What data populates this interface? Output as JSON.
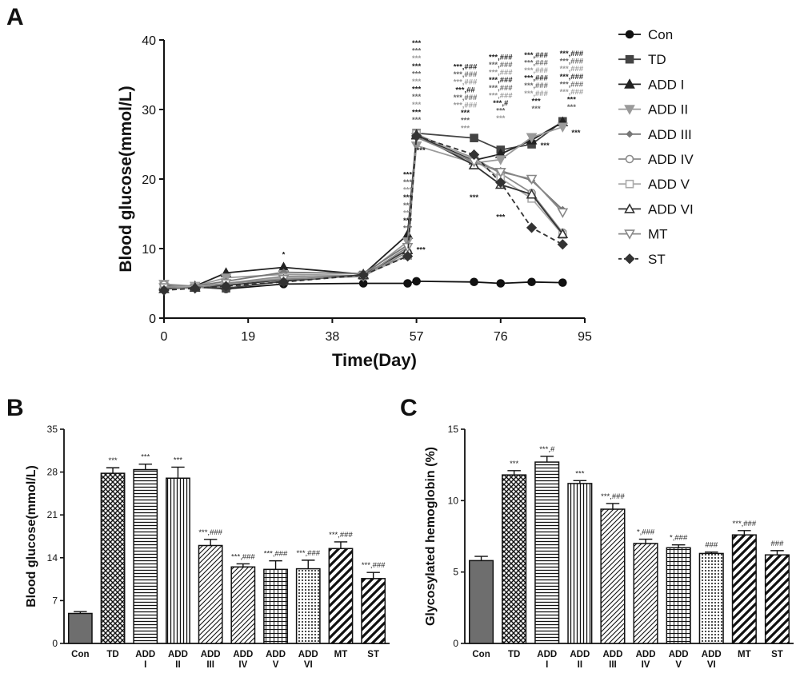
{
  "panels": {
    "a": {
      "letter": "A"
    },
    "b": {
      "letter": "B"
    },
    "c": {
      "letter": "C"
    }
  },
  "chart_data": [
    {
      "id": "A",
      "type": "line",
      "xlabel": "Time(Day)",
      "ylabel": "Blood glucose(mmol/L)",
      "xlim": [
        0,
        95
      ],
      "ylim": [
        0,
        40
      ],
      "xticks": [
        0,
        19,
        38,
        57,
        76,
        95
      ],
      "yticks": [
        0,
        10,
        20,
        30,
        40
      ],
      "grid": false,
      "legend_position": "right",
      "x": [
        0,
        7,
        14,
        27,
        45,
        55,
        57,
        70,
        76,
        83,
        90
      ],
      "series": [
        {
          "name": "Con",
          "color": "#111111",
          "marker": "circle",
          "dash": "",
          "values": [
            4.3,
            4.5,
            4.2,
            4.9,
            5.0,
            5.0,
            5.3,
            5.2,
            5.0,
            5.2,
            5.1
          ]
        },
        {
          "name": "TD",
          "color": "#444444",
          "marker": "square",
          "dash": "",
          "values": [
            4.6,
            4.5,
            4.3,
            5.3,
            6.2,
            9.0,
            26.6,
            25.9,
            24.2,
            25.0,
            28.3
          ]
        },
        {
          "name": "ADD I",
          "color": "#222222",
          "marker": "triangle",
          "dash": "",
          "values": [
            4.7,
            4.6,
            6.5,
            7.3,
            6.3,
            12.0,
            26.3,
            22.7,
            23.6,
            25.6,
            28.2
          ]
        },
        {
          "name": "ADD II",
          "color": "#9a9a9a",
          "marker": "tri-down",
          "dash": "",
          "values": [
            4.9,
            4.6,
            5.8,
            6.3,
            6.1,
            11.0,
            24.8,
            22.3,
            22.8,
            26.0,
            27.5
          ]
        },
        {
          "name": "ADD III",
          "color": "#777777",
          "marker": "diamond-small",
          "dash": "",
          "values": [
            4.5,
            4.6,
            5.3,
            6.6,
            6.4,
            10.5,
            26.1,
            22.4,
            21.2,
            19.8,
            15.6
          ]
        },
        {
          "name": "ADD IV",
          "color": "#8c8c8c",
          "marker": "circle-open",
          "dash": "",
          "values": [
            4.8,
            4.5,
            5.0,
            6.0,
            6.0,
            9.5,
            26.3,
            23.0,
            20.8,
            18.0,
            12.3
          ]
        },
        {
          "name": "ADD V",
          "color": "#aaaaaa",
          "marker": "square-open",
          "dash": "",
          "values": [
            4.4,
            4.5,
            4.9,
            5.8,
            6.1,
            9.0,
            26.5,
            22.8,
            20.1,
            17.2,
            12.0
          ]
        },
        {
          "name": "ADD VI",
          "color": "#333333",
          "marker": "triangle-open",
          "dash": "",
          "values": [
            4.2,
            4.4,
            4.7,
            5.5,
            6.2,
            9.8,
            26.4,
            22.0,
            19.2,
            17.8,
            12.1
          ]
        },
        {
          "name": "MT",
          "color": "#888888",
          "marker": "tri-down-open",
          "dash": "",
          "values": [
            4.4,
            4.3,
            5.0,
            5.6,
            6.0,
            10.2,
            26.0,
            22.5,
            21.0,
            20.0,
            15.2
          ]
        },
        {
          "name": "ST",
          "color": "#333333",
          "marker": "diamond",
          "dash": "6,4",
          "values": [
            4.0,
            4.3,
            4.6,
            5.2,
            6.2,
            8.9,
            26.2,
            23.5,
            19.5,
            13.0,
            10.6
          ]
        }
      ],
      "annotations": [
        {
          "x": 27,
          "y": 8.8,
          "lines": [
            "*"
          ]
        },
        {
          "x": 55,
          "y": 20.3,
          "lines": [
            "***",
            "***",
            "***",
            "***",
            "***",
            "***",
            "***",
            "***"
          ]
        },
        {
          "x": 58,
          "y": 9.5,
          "lines": [
            "***"
          ]
        },
        {
          "x": 58,
          "y": 23.8,
          "lines": [
            "***"
          ]
        },
        {
          "x": 57,
          "y": 39.2,
          "lines": [
            "***",
            "***",
            "***",
            "***",
            "***",
            "***",
            "***",
            "***",
            "***",
            "***",
            "***"
          ]
        },
        {
          "x": 68,
          "y": 35.8,
          "lines": [
            "***,###",
            "***,###",
            "***,###",
            "***,##",
            "***,###",
            "***,###",
            "***",
            "***",
            "***"
          ]
        },
        {
          "x": 70,
          "y": 17.0,
          "lines": [
            "***"
          ]
        },
        {
          "x": 76,
          "y": 37.2,
          "lines": [
            "***,###",
            "***,###",
            "***,###",
            "***,###",
            "***,###",
            "***,###",
            "***,#",
            "***",
            "***"
          ]
        },
        {
          "x": 76,
          "y": 14.2,
          "lines": [
            "***"
          ]
        },
        {
          "x": 84,
          "y": 37.5,
          "lines": [
            "***,###",
            "***,###",
            "***,###",
            "***,###",
            "***,###",
            "***,###",
            "***",
            "***"
          ]
        },
        {
          "x": 86,
          "y": 24.5,
          "lines": [
            "***"
          ]
        },
        {
          "x": 92,
          "y": 37.7,
          "lines": [
            "***,###",
            "***,###",
            "***,###",
            "***,###",
            "***,###",
            "***,###",
            "***",
            "***"
          ]
        },
        {
          "x": 93,
          "y": 26.3,
          "lines": [
            "***"
          ]
        }
      ]
    },
    {
      "id": "B",
      "type": "bar",
      "ylabel": "Blood glucose(mmol/L)",
      "ylim": [
        0,
        35
      ],
      "yticks": [
        0,
        7,
        14,
        21,
        28,
        35
      ],
      "categories": [
        [
          "Con"
        ],
        [
          "TD"
        ],
        [
          "ADD",
          "I"
        ],
        [
          "ADD",
          "II"
        ],
        [
          "ADD",
          "III"
        ],
        [
          "ADD",
          "IV"
        ],
        [
          "ADD",
          "V"
        ],
        [
          "ADD",
          "VI"
        ],
        [
          "MT"
        ],
        [
          "ST"
        ]
      ],
      "values": [
        4.9,
        27.8,
        28.4,
        27.0,
        16.0,
        12.5,
        12.1,
        12.2,
        15.5,
        10.6
      ],
      "errors": [
        0.3,
        0.9,
        0.9,
        1.8,
        1.0,
        0.5,
        1.4,
        1.4,
        1.1,
        1.0
      ],
      "patterns": [
        "solid",
        "crosshatch",
        "hlines",
        "vlines",
        "diag",
        "diag",
        "grid",
        "dots",
        "diag-thick",
        "diag-thick"
      ],
      "labels": [
        "",
        "***",
        "***",
        "***",
        "***,###",
        "***,###",
        "***,###",
        "***,###",
        "***,###",
        "***,###"
      ]
    },
    {
      "id": "C",
      "type": "bar",
      "ylabel": "Glycosylated hemoglobin (%)",
      "ylim": [
        0,
        15
      ],
      "yticks": [
        0,
        5,
        10,
        15
      ],
      "categories": [
        [
          "Con"
        ],
        [
          "TD"
        ],
        [
          "ADD",
          "I"
        ],
        [
          "ADD",
          "II"
        ],
        [
          "ADD",
          "III"
        ],
        [
          "ADD",
          "IV"
        ],
        [
          "ADD",
          "V"
        ],
        [
          "ADD",
          "VI"
        ],
        [
          "MT"
        ],
        [
          "ST"
        ]
      ],
      "values": [
        5.8,
        11.8,
        12.7,
        11.2,
        9.4,
        7.0,
        6.7,
        6.3,
        7.6,
        6.2
      ],
      "errors": [
        0.3,
        0.3,
        0.4,
        0.2,
        0.4,
        0.3,
        0.2,
        0.1,
        0.3,
        0.3
      ],
      "patterns": [
        "solid",
        "crosshatch",
        "hlines",
        "vlines",
        "diag",
        "diag",
        "grid",
        "dots",
        "diag-thick",
        "diag-thick"
      ],
      "labels": [
        "",
        "***",
        "***,#",
        "***",
        "***,###",
        "*,###",
        "*,###",
        "###",
        "***,###",
        "###"
      ]
    }
  ]
}
